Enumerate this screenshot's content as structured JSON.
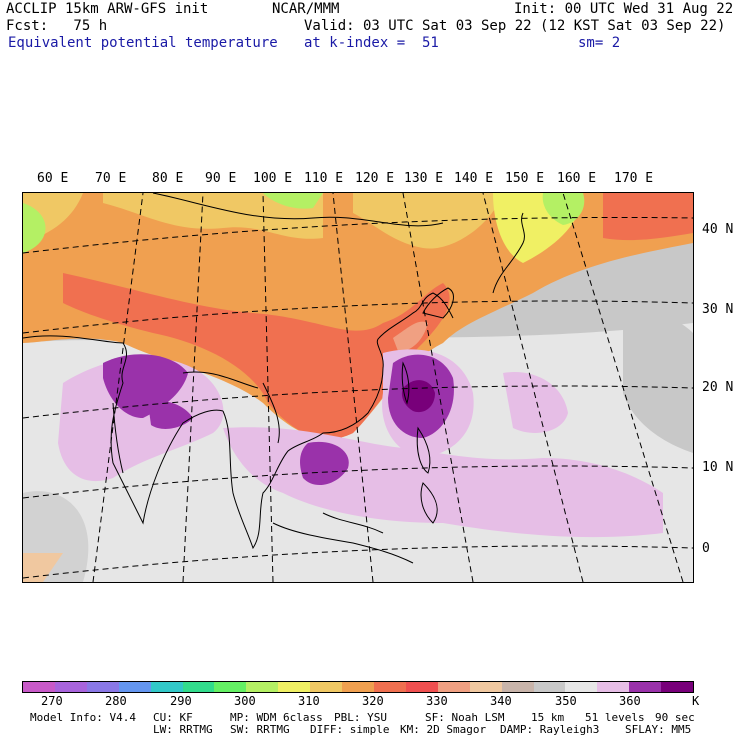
{
  "header": {
    "line1_left": "ACCLIP 15km ARW-GFS init",
    "line1_center": "NCAR/MMM",
    "line1_right": "Init: 00 UTC Wed 31 Aug 22",
    "line2_left": "Fcst:   75 h",
    "line2_right": "Valid: 03 UTC Sat 03 Sep 22 (12 KST Sat 03 Sep 22)",
    "line3_left": "Equivalent potential temperature",
    "line3_center": "at k-index =  51",
    "line3_right": "sm= 2"
  },
  "map": {
    "lon_labels": [
      "60 E",
      "70 E",
      "80 E",
      "90 E",
      "100 E",
      "110 E",
      "120 E",
      "130 E",
      "140 E",
      "150 E",
      "160 E",
      "170 E"
    ],
    "lat_labels": [
      "40 N",
      "30 N",
      "20 N",
      "10 N",
      "0"
    ]
  },
  "colorbar": {
    "colors": [
      "#c85ac8",
      "#a864dc",
      "#8a78e6",
      "#6496f0",
      "#32c8c8",
      "#32dc8c",
      "#64f064",
      "#b4f064",
      "#f0f064",
      "#f0c864",
      "#f0a050",
      "#f07050",
      "#f05050",
      "#f0a082",
      "#f0c8a0",
      "#c8b4aa",
      "#c8c8c8",
      "#e6e6e6",
      "#e6bee6",
      "#9a32aa",
      "#78007a"
    ],
    "labels": [
      "270",
      "280",
      "290",
      "300",
      "310",
      "320",
      "330",
      "340",
      "350",
      "360"
    ],
    "unit": "K"
  },
  "footer": {
    "line1": [
      "Model Info: V4.4",
      "CU: KF",
      "MP: WDM 6class",
      "PBL: YSU",
      "SF: Noah LSM",
      "15 km",
      "51 levels",
      "90 sec"
    ],
    "line2": [
      "LW: RRTMG",
      "SW: RRTMG",
      "DIFF: simple",
      "KM: 2D Smagor",
      "DAMP: Rayleigh3",
      "SFLAY: MM5"
    ]
  }
}
